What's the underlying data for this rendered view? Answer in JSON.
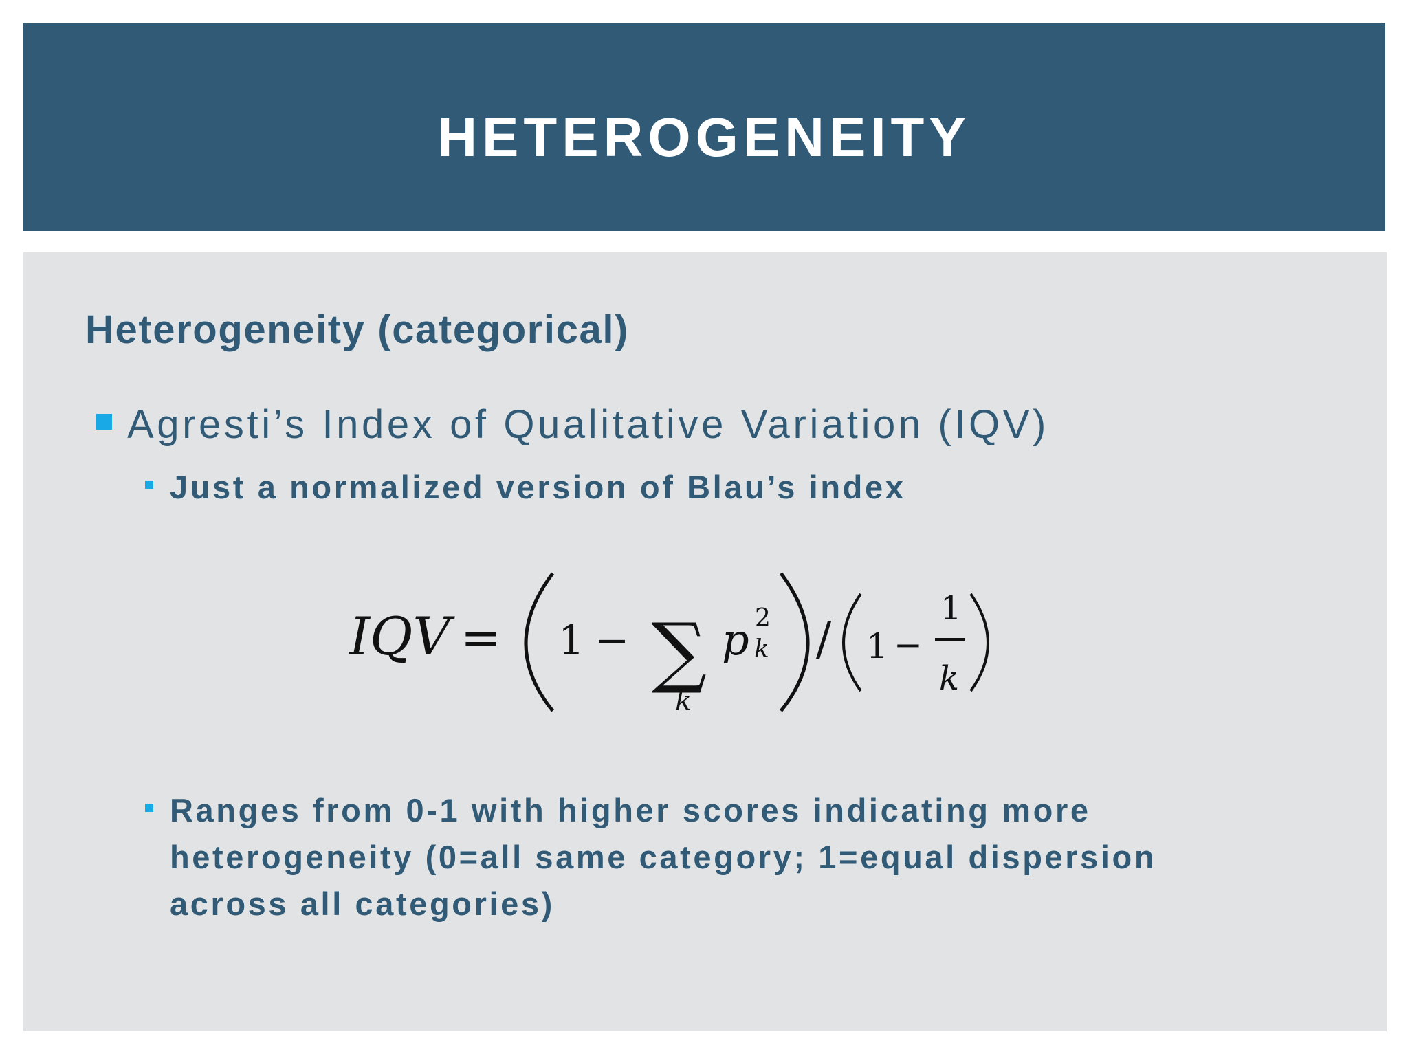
{
  "slide": {
    "title": "HETEROGENEITY",
    "subtitle": "Heterogeneity (categorical)",
    "bullets": {
      "level1": "Agresti’s Index of Qualitative Variation (IQV)",
      "level2": [
        "Just a normalized version of Blau’s index",
        "Ranges from 0-1 with higher scores indicating more",
        "heterogeneity (0=all same category; 1=equal dispersion",
        "across all categories)"
      ]
    },
    "formula": {
      "lhs": "IQV",
      "equals": "=",
      "one_a": "1",
      "minus_a": "−",
      "sigma": "∑",
      "sum_index": "k",
      "p": "p",
      "exponent": "2",
      "subscript": "k",
      "slash": "/",
      "one_b": "1",
      "minus_b": "−",
      "fraction_numerator": "1",
      "fraction_denominator": "k"
    }
  },
  "colors": {
    "header_background": "#315a76",
    "panel_background": "#e1e3e5",
    "text_primary": "#315a76",
    "bullet_accent": "#19a9e6"
  }
}
